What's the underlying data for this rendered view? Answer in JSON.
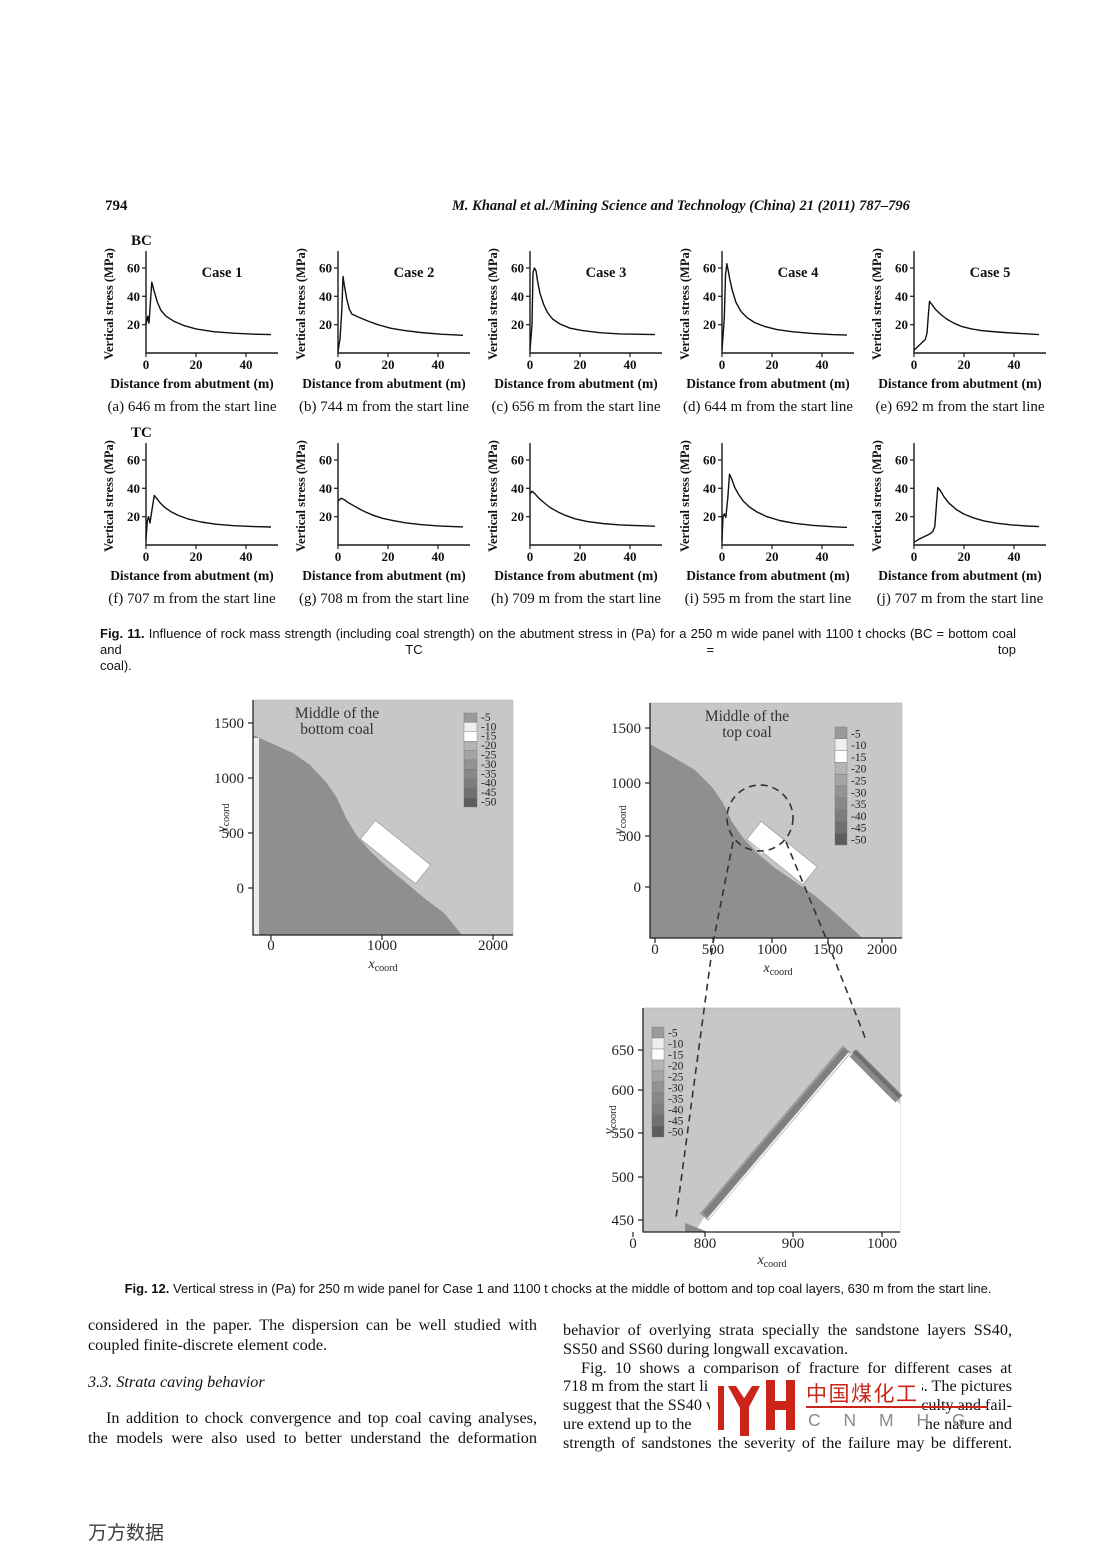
{
  "page": {
    "number": "794",
    "header": "M. Khanal et al./Mining Science and Technology (China) 21 (2011) 787–796",
    "footer_watermark": "万方数据"
  },
  "fig11": {
    "bc_label": "BC",
    "tc_label": "TC",
    "caption_label": "Fig. 11.",
    "caption_line1_rest": "Influence of rock mass strength (including coal strength) on the abutment stress in (Pa) for a 250 m wide panel with 1100 t chocks (BC = bottom coal and TC = top",
    "caption_line2": "coal)."
  },
  "fig12": {
    "caption_label": "Fig. 12.",
    "caption_rest": "Vertical stress in (Pa) for 250 m wide panel for Case 1 and 1100 t chocks at the middle of bottom and top coal layers, 630 m from the start line."
  },
  "body": {
    "left_column": {
      "para1": [
        {
          "text": "considered in the paper. The dispersion can be well studied with",
          "justify": true
        },
        {
          "text": "coupled finite-discrete element code.",
          "justify": false
        }
      ],
      "heading": "3.3. Strata caving behavior",
      "para2": [
        {
          "text": "In addition to chock convergence and top coal caving analyses,",
          "justify": true,
          "indent": true
        },
        {
          "text": "the models were also used to better understand the deformation",
          "justify": true
        }
      ]
    },
    "right_column": {
      "lines": [
        {
          "text": "behavior of overlying strata specially the sandstone layers SS40,",
          "justify": true
        },
        {
          "text": "SS50 and SS60 during longwall excavation.",
          "justify": false
        },
        {
          "text": "Fig. 10 shows a comparison of fracture for different cases at",
          "justify": true,
          "indent": true
        },
        {
          "left": "718 m from the start li",
          "right": "s. The pictures"
        },
        {
          "left": "suggest that the SS40 v",
          "right": "culty and fail-"
        },
        {
          "left": "ure extend up to the",
          "right": "ne nature and"
        },
        {
          "text": "strength of sandstones the severity of the failure may be different.",
          "justify": true
        }
      ]
    }
  },
  "logo": {
    "chinese": "中国煤化工",
    "latin": "C N M H G",
    "red": "#cb2418",
    "gray": "#8a8a8a"
  },
  "chart_data": {
    "legend_colors": [
      "#9a9a9a",
      "#efefef",
      "#ffffff",
      "#b4b4b4",
      "#a4a4a4",
      "#949494",
      "#888888",
      "#7d7d7d",
      "#707070",
      "#5d5d5d"
    ],
    "fig11_line_charts": {
      "type": "line",
      "ylabel": "Vertical stress (MPa)",
      "xlabel_row1": "Distance from abutment  (m)",
      "xlabel_row2": "Distance from abutment (m)",
      "xticks": [
        0,
        20,
        40
      ],
      "yticks": [
        20,
        40,
        60
      ],
      "xlim": [
        0,
        52
      ],
      "ylim": [
        0,
        72
      ],
      "grid": false,
      "charts": [
        {
          "row": "BC",
          "case_label": "Case 1",
          "caption": "(a) 646 m from the start line",
          "points": [
            [
              0,
              20
            ],
            [
              0.7,
              26
            ],
            [
              1.2,
              21
            ],
            [
              2.3,
              50
            ],
            [
              3.2,
              44
            ],
            [
              4.5,
              36
            ],
            [
              6,
              30
            ],
            [
              8,
              26
            ],
            [
              11,
              22.5
            ],
            [
              15,
              19.5
            ],
            [
              20,
              17
            ],
            [
              27,
              15
            ],
            [
              35,
              14
            ],
            [
              43,
              13.3
            ],
            [
              50,
              13
            ]
          ]
        },
        {
          "row": "BC",
          "case_label": "Case 2",
          "caption": "(b) 744 m from the start line",
          "points": [
            [
              0,
              1
            ],
            [
              0.8,
              10
            ],
            [
              1.5,
              30
            ],
            [
              2,
              54
            ],
            [
              2.6,
              47
            ],
            [
              3.5,
              38
            ],
            [
              4.5,
              31
            ],
            [
              5.5,
              27.5
            ],
            [
              8,
              25.5
            ],
            [
              12,
              22.5
            ],
            [
              16,
              20
            ],
            [
              21,
              17.5
            ],
            [
              26,
              16
            ],
            [
              33,
              14.5
            ],
            [
              41,
              13.3
            ],
            [
              50,
              12.5
            ]
          ]
        },
        {
          "row": "BC",
          "case_label": "Case 3",
          "caption": "(c) 656 m from the start line",
          "points": [
            [
              0,
              2
            ],
            [
              0.8,
              20
            ],
            [
              1.2,
              57
            ],
            [
              1.8,
              60
            ],
            [
              2.4,
              58
            ],
            [
              3,
              51
            ],
            [
              4,
              42
            ],
            [
              5.5,
              34
            ],
            [
              7,
              28.5
            ],
            [
              9,
              24
            ],
            [
              12,
              20.5
            ],
            [
              16,
              17.5
            ],
            [
              21,
              15.8
            ],
            [
              28,
              14.3
            ],
            [
              36,
              13.5
            ],
            [
              50,
              13
            ]
          ]
        },
        {
          "row": "BC",
          "case_label": "Case 4",
          "caption": "(d) 644 m from the start line",
          "points": [
            [
              0,
              2
            ],
            [
              0.9,
              25
            ],
            [
              1.4,
              55
            ],
            [
              1.9,
              63
            ],
            [
              2.4,
              59
            ],
            [
              3,
              53
            ],
            [
              4,
              45
            ],
            [
              5.5,
              36
            ],
            [
              7.5,
              29.5
            ],
            [
              10,
              25
            ],
            [
              13,
              21.5
            ],
            [
              17,
              18.8
            ],
            [
              22,
              16.5
            ],
            [
              28,
              15
            ],
            [
              36,
              13.8
            ],
            [
              44,
              13
            ],
            [
              50,
              12.6
            ]
          ]
        },
        {
          "row": "BC",
          "case_label": "Case 5",
          "caption": "(e) 692 m from the start line",
          "points": [
            [
              0,
              2
            ],
            [
              1.5,
              4.5
            ],
            [
              3,
              7
            ],
            [
              4.5,
              9.5
            ],
            [
              5.2,
              14
            ],
            [
              5.8,
              28
            ],
            [
              6.2,
              36.5
            ],
            [
              7,
              34.5
            ],
            [
              8.5,
              31
            ],
            [
              10.5,
              27.5
            ],
            [
              13,
              24
            ],
            [
              16,
              21
            ],
            [
              19,
              18.8
            ],
            [
              23,
              17
            ],
            [
              27,
              15.8
            ],
            [
              31,
              15.2
            ],
            [
              36,
              14.5
            ],
            [
              43,
              13.7
            ],
            [
              50,
              13
            ]
          ]
        },
        {
          "row": "TC",
          "case_label": "",
          "caption": "(f) 707 m from the start line",
          "points": [
            [
              0,
              4
            ],
            [
              0.5,
              17
            ],
            [
              1,
              20
            ],
            [
              1.6,
              15.5
            ],
            [
              2.4,
              25
            ],
            [
              3.3,
              35
            ],
            [
              4.2,
              33
            ],
            [
              5.5,
              30
            ],
            [
              7.5,
              26.5
            ],
            [
              10,
              23.5
            ],
            [
              13,
              20.8
            ],
            [
              17,
              18.3
            ],
            [
              22,
              16.2
            ],
            [
              28,
              14.7
            ],
            [
              35,
              13.6
            ],
            [
              43,
              13
            ],
            [
              50,
              12.7
            ]
          ]
        },
        {
          "row": "TC",
          "case_label": "",
          "caption": "(g) 708 m from the start line",
          "points": [
            [
              0,
              31
            ],
            [
              1.2,
              33
            ],
            [
              2.5,
              32
            ],
            [
              4,
              30
            ],
            [
              6,
              28
            ],
            [
              8.5,
              25.5
            ],
            [
              11,
              23.3
            ],
            [
              14,
              21
            ],
            [
              18,
              18.8
            ],
            [
              22,
              17.2
            ],
            [
              27,
              15.7
            ],
            [
              33,
              14.4
            ],
            [
              40,
              13.5
            ],
            [
              46,
              13
            ],
            [
              50,
              12.8
            ]
          ]
        },
        {
          "row": "TC",
          "case_label": "",
          "caption": "(h) 709 m from the start line",
          "points": [
            [
              0,
              36
            ],
            [
              0.8,
              38
            ],
            [
              1.8,
              36.5
            ],
            [
              3.5,
              33
            ],
            [
              5.5,
              30
            ],
            [
              8,
              26.5
            ],
            [
              11,
              23.5
            ],
            [
              14,
              21
            ],
            [
              18,
              18.5
            ],
            [
              23,
              16.5
            ],
            [
              29,
              15.2
            ],
            [
              36,
              14.2
            ],
            [
              44,
              13.6
            ],
            [
              50,
              13.3
            ]
          ]
        },
        {
          "row": "TC",
          "case_label": "",
          "caption": "(i) 595 m from the start line",
          "points": [
            [
              0,
              3
            ],
            [
              0.4,
              20
            ],
            [
              0.9,
              22
            ],
            [
              1.5,
              19.5
            ],
            [
              2.3,
              33
            ],
            [
              3,
              50
            ],
            [
              3.8,
              47
            ],
            [
              5,
              41
            ],
            [
              6.5,
              36
            ],
            [
              8.5,
              31
            ],
            [
              11,
              26.8
            ],
            [
              14,
              23.3
            ],
            [
              18,
              20
            ],
            [
              23,
              17.3
            ],
            [
              29,
              15.3
            ],
            [
              36,
              13.9
            ],
            [
              44,
              12.9
            ],
            [
              50,
              12.4
            ]
          ]
        },
        {
          "row": "TC",
          "case_label": "",
          "caption": "(j) 707 m from the start line",
          "points": [
            [
              0,
              2
            ],
            [
              2,
              4
            ],
            [
              4,
              5.8
            ],
            [
              6,
              7.5
            ],
            [
              7.5,
              9.5
            ],
            [
              8.3,
              13
            ],
            [
              9,
              29
            ],
            [
              9.5,
              40.5
            ],
            [
              10.5,
              38.5
            ],
            [
              12,
              34
            ],
            [
              14,
              29.5
            ],
            [
              17,
              25
            ],
            [
              20,
              21.8
            ],
            [
              24,
              19
            ],
            [
              28,
              17
            ],
            [
              33,
              15.4
            ],
            [
              39,
              14.2
            ],
            [
              45,
              13.4
            ],
            [
              50,
              13
            ]
          ]
        }
      ]
    },
    "fig12_contour_plots": [
      {
        "type": "heatmap",
        "title_line1": "Middle of the",
        "title_line2": "bottom coal",
        "xlabel": "x",
        "xlabel_sub": "coord",
        "ylabel": "y",
        "ylabel_sub": "coord",
        "xticks": [
          0,
          1000,
          2000
        ],
        "yticks": [
          0,
          500,
          1000,
          1500
        ],
        "legend_levels": [
          -5,
          -10,
          -15,
          -20,
          -25,
          -30,
          -35,
          -40,
          -45,
          -50
        ],
        "regions": [
          {
            "name": "dark high-stress zone",
            "location": "lower-left half",
            "level": "about -20 to -25"
          },
          {
            "name": "light background strata",
            "location": "upper-right half",
            "level": "about -5 to -10"
          },
          {
            "name": "white excavated panel",
            "location": "rotated rectangle centred near x=1100, y=330",
            "level": "near 0"
          }
        ]
      },
      {
        "type": "heatmap",
        "title_line1": "Middle of the",
        "title_line2": "top coal",
        "xlabel": "x",
        "xlabel_sub": "coord",
        "ylabel": "y",
        "ylabel_sub": "coord",
        "xticks": [
          0,
          500,
          1000,
          1500,
          2000
        ],
        "yticks": [
          0,
          500,
          1000,
          1500
        ],
        "legend_levels": [
          -5,
          -10,
          -15,
          -20,
          -25,
          -30,
          -35,
          -40,
          -45,
          -50
        ],
        "regions": [
          {
            "name": "dark high-stress zone",
            "location": "lower-left half",
            "level": "about -20 to -25"
          },
          {
            "name": "light background strata",
            "location": "upper-right half",
            "level": "about -5 to -10"
          },
          {
            "name": "white excavated panel",
            "location": "rotated rectangle centred near x=1100, y=330",
            "level": "near 0"
          },
          {
            "name": "dashed magnifier circle",
            "location": "centred near x=900, y=650",
            "level": "zoom callout to lower plot"
          }
        ]
      },
      {
        "type": "heatmap",
        "title_line1": "",
        "title_line2": "",
        "xlabel": "x",
        "xlabel_sub": "coord",
        "ylabel": "y",
        "ylabel_sub": "coord",
        "xticks": [
          0,
          800,
          900,
          1000
        ],
        "yticks": [
          450,
          500,
          550,
          600,
          650
        ],
        "legend_levels": [
          -5,
          -10,
          -15,
          -20,
          -25,
          -30,
          -35,
          -40,
          -45,
          -50
        ],
        "regions": [
          {
            "name": "light background strata",
            "location": "upper-left area",
            "level": "about -5"
          },
          {
            "name": "dark stress band",
            "location": "diagonal from x=800,y=460 to x=970,y=645",
            "level": "about -25 to -45"
          },
          {
            "name": "white goaf wedge",
            "location": "lower-right area",
            "level": "near 0"
          }
        ]
      }
    ]
  }
}
